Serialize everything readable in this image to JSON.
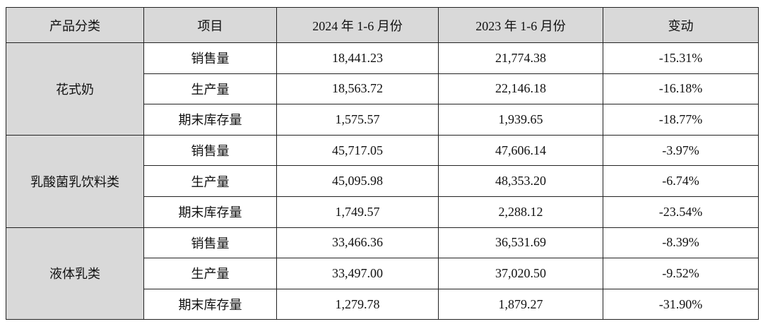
{
  "table": {
    "header": [
      "产品分类",
      "项目",
      "2024 年 1-6 月份",
      "2023 年 1-6 月份",
      "变动"
    ],
    "groups": [
      {
        "category": "花式奶",
        "rows": [
          [
            "销售量",
            "18,441.23",
            "21,774.38",
            "-15.31%"
          ],
          [
            "生产量",
            "18,563.72",
            "22,146.18",
            "-16.18%"
          ],
          [
            "期末库存量",
            "1,575.57",
            "1,939.65",
            "-18.77%"
          ]
        ]
      },
      {
        "category": "乳酸菌乳饮料类",
        "rows": [
          [
            "销售量",
            "45,717.05",
            "47,606.14",
            "-3.97%"
          ],
          [
            "生产量",
            "45,095.98",
            "48,353.20",
            "-6.74%"
          ],
          [
            "期末库存量",
            "1,749.57",
            "2,288.12",
            "-23.54%"
          ]
        ]
      },
      {
        "category": "液体乳类",
        "rows": [
          [
            "销售量",
            "33,466.36",
            "36,531.69",
            "-8.39%"
          ],
          [
            "生产量",
            "33,497.00",
            "37,020.50",
            "-9.52%"
          ],
          [
            "期末库存量",
            "1,279.78",
            "1,879.27",
            "-31.90%"
          ]
        ]
      }
    ]
  }
}
